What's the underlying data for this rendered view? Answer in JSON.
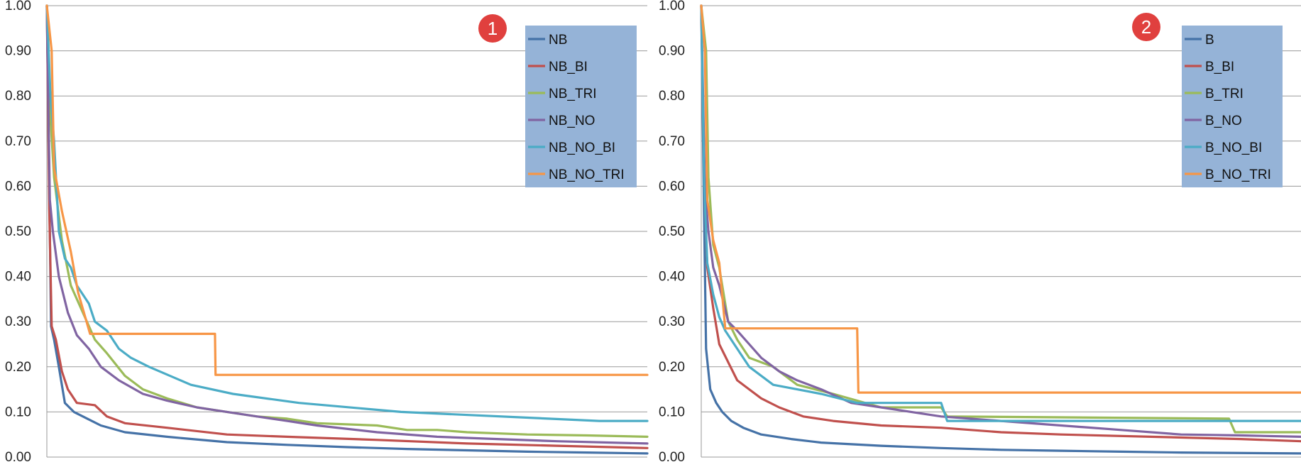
{
  "chart_data": [
    {
      "type": "line",
      "badge": "1",
      "ylim": [
        0,
        1
      ],
      "yticks": [
        "0.00",
        "0.10",
        "0.20",
        "0.30",
        "0.40",
        "0.50",
        "0.60",
        "0.70",
        "0.80",
        "0.90",
        "1.00"
      ],
      "grid": true,
      "legend_position": "top-right",
      "series": [
        {
          "name": "NB",
          "color": "#4572A7",
          "points": [
            [
              0,
              1.0
            ],
            [
              0.004,
              0.6
            ],
            [
              0.007,
              0.29
            ],
            [
              0.012,
              0.26
            ],
            [
              0.02,
              0.2
            ],
            [
              0.03,
              0.12
            ],
            [
              0.045,
              0.1
            ],
            [
              0.06,
              0.09
            ],
            [
              0.09,
              0.07
            ],
            [
              0.13,
              0.055
            ],
            [
              0.2,
              0.045
            ],
            [
              0.3,
              0.033
            ],
            [
              0.4,
              0.027
            ],
            [
              0.5,
              0.022
            ],
            [
              0.6,
              0.018
            ],
            [
              0.7,
              0.015
            ],
            [
              0.8,
              0.012
            ],
            [
              0.9,
              0.01
            ],
            [
              1.0,
              0.008
            ]
          ]
        },
        {
          "name": "NB_BI",
          "color": "#C0504D",
          "points": [
            [
              0,
              1.0
            ],
            [
              0.004,
              0.55
            ],
            [
              0.008,
              0.29
            ],
            [
              0.015,
              0.26
            ],
            [
              0.025,
              0.19
            ],
            [
              0.035,
              0.15
            ],
            [
              0.05,
              0.12
            ],
            [
              0.08,
              0.115
            ],
            [
              0.1,
              0.09
            ],
            [
              0.13,
              0.075
            ],
            [
              0.2,
              0.065
            ],
            [
              0.3,
              0.05
            ],
            [
              0.4,
              0.045
            ],
            [
              0.55,
              0.038
            ],
            [
              0.7,
              0.03
            ],
            [
              0.85,
              0.025
            ],
            [
              1.0,
              0.02
            ]
          ]
        },
        {
          "name": "NB_TRI",
          "color": "#9BBB59",
          "points": [
            [
              0,
              1.0
            ],
            [
              0.006,
              0.75
            ],
            [
              0.012,
              0.62
            ],
            [
              0.025,
              0.48
            ],
            [
              0.04,
              0.38
            ],
            [
              0.06,
              0.32
            ],
            [
              0.08,
              0.26
            ],
            [
              0.1,
              0.23
            ],
            [
              0.13,
              0.18
            ],
            [
              0.16,
              0.15
            ],
            [
              0.2,
              0.13
            ],
            [
              0.25,
              0.11
            ],
            [
              0.3,
              0.1
            ],
            [
              0.35,
              0.09
            ],
            [
              0.4,
              0.085
            ],
            [
              0.45,
              0.075
            ],
            [
              0.55,
              0.07
            ],
            [
              0.6,
              0.06
            ],
            [
              0.65,
              0.06
            ],
            [
              0.7,
              0.055
            ],
            [
              0.8,
              0.05
            ],
            [
              0.9,
              0.048
            ],
            [
              1.0,
              0.045
            ]
          ]
        },
        {
          "name": "NB_NO",
          "color": "#8064A2",
          "points": [
            [
              0,
              1.0
            ],
            [
              0.005,
              0.57
            ],
            [
              0.01,
              0.5
            ],
            [
              0.02,
              0.4
            ],
            [
              0.035,
              0.32
            ],
            [
              0.05,
              0.27
            ],
            [
              0.07,
              0.24
            ],
            [
              0.09,
              0.2
            ],
            [
              0.12,
              0.17
            ],
            [
              0.16,
              0.14
            ],
            [
              0.2,
              0.125
            ],
            [
              0.25,
              0.11
            ],
            [
              0.3,
              0.1
            ],
            [
              0.35,
              0.09
            ],
            [
              0.4,
              0.08
            ],
            [
              0.45,
              0.07
            ],
            [
              0.55,
              0.055
            ],
            [
              0.65,
              0.045
            ],
            [
              0.75,
              0.04
            ],
            [
              0.85,
              0.035
            ],
            [
              1.0,
              0.03
            ]
          ]
        },
        {
          "name": "NB_NO_BI",
          "color": "#4BACC6",
          "points": [
            [
              0,
              1.0
            ],
            [
              0.006,
              0.8
            ],
            [
              0.012,
              0.7
            ],
            [
              0.02,
              0.5
            ],
            [
              0.03,
              0.44
            ],
            [
              0.04,
              0.42
            ],
            [
              0.05,
              0.38
            ],
            [
              0.07,
              0.34
            ],
            [
              0.08,
              0.3
            ],
            [
              0.1,
              0.28
            ],
            [
              0.12,
              0.24
            ],
            [
              0.14,
              0.22
            ],
            [
              0.17,
              0.2
            ],
            [
              0.24,
              0.16
            ],
            [
              0.31,
              0.14
            ],
            [
              0.42,
              0.12
            ],
            [
              0.59,
              0.1
            ],
            [
              0.92,
              0.08
            ],
            [
              1.0,
              0.08
            ]
          ]
        },
        {
          "name": "NB_NO_TRI",
          "color": "#F79646",
          "points": [
            [
              0,
              1.0
            ],
            [
              0.008,
              0.9
            ],
            [
              0.012,
              0.64
            ],
            [
              0.025,
              0.545
            ],
            [
              0.04,
              0.455
            ],
            [
              0.052,
              0.365
            ],
            [
              0.072,
              0.273
            ],
            [
              0.28,
              0.273
            ],
            [
              0.281,
              0.182
            ],
            [
              1.0,
              0.182
            ]
          ]
        }
      ]
    },
    {
      "type": "line",
      "badge": "2",
      "ylim": [
        0,
        1
      ],
      "yticks": [
        "0.00",
        "0.10",
        "0.20",
        "0.30",
        "0.40",
        "0.50",
        "0.60",
        "0.70",
        "0.80",
        "0.90",
        "1.00"
      ],
      "grid": true,
      "legend_position": "top-right",
      "series": [
        {
          "name": "B",
          "color": "#4572A7",
          "points": [
            [
              0,
              1.0
            ],
            [
              0.004,
              0.6
            ],
            [
              0.008,
              0.24
            ],
            [
              0.015,
              0.15
            ],
            [
              0.025,
              0.12
            ],
            [
              0.035,
              0.1
            ],
            [
              0.05,
              0.08
            ],
            [
              0.07,
              0.065
            ],
            [
              0.1,
              0.05
            ],
            [
              0.15,
              0.04
            ],
            [
              0.2,
              0.032
            ],
            [
              0.3,
              0.025
            ],
            [
              0.4,
              0.02
            ],
            [
              0.5,
              0.016
            ],
            [
              0.6,
              0.014
            ],
            [
              0.7,
              0.012
            ],
            [
              0.8,
              0.01
            ],
            [
              1.0,
              0.008
            ]
          ]
        },
        {
          "name": "B_BI",
          "color": "#C0504D",
          "points": [
            [
              0,
              1.0
            ],
            [
              0.005,
              0.6
            ],
            [
              0.01,
              0.42
            ],
            [
              0.02,
              0.33
            ],
            [
              0.03,
              0.25
            ],
            [
              0.045,
              0.21
            ],
            [
              0.06,
              0.17
            ],
            [
              0.08,
              0.15
            ],
            [
              0.1,
              0.13
            ],
            [
              0.13,
              0.11
            ],
            [
              0.17,
              0.09
            ],
            [
              0.22,
              0.08
            ],
            [
              0.3,
              0.07
            ],
            [
              0.4,
              0.065
            ],
            [
              0.5,
              0.055
            ],
            [
              0.6,
              0.05
            ],
            [
              0.75,
              0.045
            ],
            [
              0.9,
              0.04
            ],
            [
              1.0,
              0.035
            ]
          ]
        },
        {
          "name": "B_TRI",
          "color": "#9BBB59",
          "points": [
            [
              0,
              1.0
            ],
            [
              0.008,
              0.9
            ],
            [
              0.012,
              0.62
            ],
            [
              0.02,
              0.47
            ],
            [
              0.03,
              0.42
            ],
            [
              0.045,
              0.3
            ],
            [
              0.06,
              0.26
            ],
            [
              0.08,
              0.22
            ],
            [
              0.12,
              0.2
            ],
            [
              0.16,
              0.16
            ],
            [
              0.22,
              0.14
            ],
            [
              0.3,
              0.11
            ],
            [
              0.4,
              0.11
            ],
            [
              0.41,
              0.09
            ],
            [
              0.6,
              0.088
            ],
            [
              0.88,
              0.085
            ],
            [
              0.89,
              0.055
            ],
            [
              1.0,
              0.055
            ]
          ]
        },
        {
          "name": "B_NO",
          "color": "#8064A2",
          "points": [
            [
              0,
              1.0
            ],
            [
              0.006,
              0.6
            ],
            [
              0.012,
              0.5
            ],
            [
              0.02,
              0.42
            ],
            [
              0.03,
              0.38
            ],
            [
              0.045,
              0.3
            ],
            [
              0.06,
              0.28
            ],
            [
              0.08,
              0.25
            ],
            [
              0.1,
              0.22
            ],
            [
              0.13,
              0.19
            ],
            [
              0.16,
              0.17
            ],
            [
              0.2,
              0.15
            ],
            [
              0.25,
              0.12
            ],
            [
              0.3,
              0.11
            ],
            [
              0.35,
              0.1
            ],
            [
              0.4,
              0.09
            ],
            [
              0.5,
              0.08
            ],
            [
              0.6,
              0.07
            ],
            [
              0.7,
              0.06
            ],
            [
              0.8,
              0.05
            ],
            [
              0.9,
              0.048
            ],
            [
              1.0,
              0.045
            ]
          ]
        },
        {
          "name": "B_NO_BI",
          "color": "#4BACC6",
          "points": [
            [
              0,
              1.0
            ],
            [
              0.005,
              0.6
            ],
            [
              0.01,
              0.43
            ],
            [
              0.02,
              0.36
            ],
            [
              0.03,
              0.31
            ],
            [
              0.04,
              0.28
            ],
            [
              0.06,
              0.24
            ],
            [
              0.08,
              0.2
            ],
            [
              0.12,
              0.16
            ],
            [
              0.2,
              0.14
            ],
            [
              0.26,
              0.12
            ],
            [
              0.4,
              0.12
            ],
            [
              0.41,
              0.08
            ],
            [
              1.0,
              0.08
            ]
          ]
        },
        {
          "name": "B_NO_TRI",
          "color": "#F79646",
          "points": [
            [
              0,
              1.0
            ],
            [
              0.006,
              0.9
            ],
            [
              0.01,
              0.57
            ],
            [
              0.02,
              0.48
            ],
            [
              0.03,
              0.43
            ],
            [
              0.04,
              0.285
            ],
            [
              0.26,
              0.285
            ],
            [
              0.262,
              0.143
            ],
            [
              1.0,
              0.143
            ]
          ]
        }
      ]
    }
  ]
}
